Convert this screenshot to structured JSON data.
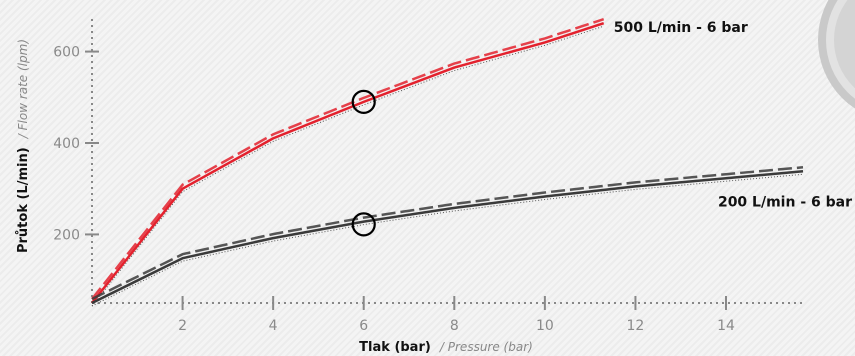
{
  "chart_data": {
    "type": "line",
    "xlabel": {
      "main": "Tlak (bar)",
      "sub": "/ Pressure (bar)"
    },
    "ylabel": {
      "main": "Průtok (L/min)",
      "sub": "/ Flow rate (lpm)"
    },
    "xlim": [
      0,
      15.7
    ],
    "ylim": [
      50,
      680
    ],
    "x_ticks": [
      2,
      4,
      6,
      8,
      10,
      12,
      14
    ],
    "y_ticks": [
      200,
      400,
      600
    ],
    "grid": false,
    "series": [
      {
        "name": "500 L/min - 6 bar",
        "color": "#e3212d",
        "points": [
          [
            0,
            50
          ],
          [
            2,
            300
          ],
          [
            4,
            410
          ],
          [
            6,
            490
          ],
          [
            8,
            565
          ],
          [
            10,
            620
          ],
          [
            11.3,
            662
          ]
        ],
        "marker": [
          6,
          490
        ]
      },
      {
        "name": "200 L/min - 6 bar",
        "color": "#3a3a3a",
        "points": [
          [
            0,
            50
          ],
          [
            2,
            148
          ],
          [
            4,
            192
          ],
          [
            6,
            228
          ],
          [
            8,
            258
          ],
          [
            10,
            283
          ],
          [
            12,
            305
          ],
          [
            14,
            323
          ],
          [
            15.7,
            338
          ]
        ],
        "marker": [
          6,
          222
        ]
      }
    ]
  }
}
